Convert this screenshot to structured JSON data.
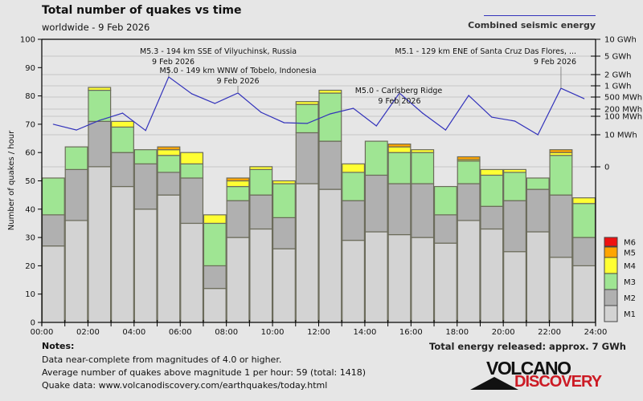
{
  "header": {
    "title": "Total number of quakes vs time",
    "subtitle": "worldwide -  9 Feb 2026",
    "energy_legend": "Combined seismic energy"
  },
  "notes": {
    "title": "Notes:",
    "line1": "Data near-complete from magnitudes of 4.0 or higher.",
    "line2": "Average number of quakes above magnitude 1 per hour: 59 (total: 1418)",
    "line3": "Quake data: www.volcanodiscovery.com/earthquakes/today.html"
  },
  "total_energy": "Total energy released: approx. 7 GWh",
  "logo": {
    "line1": "VOLCANO",
    "line2": "DISCOVERY"
  },
  "colors": {
    "M1": "#d3d3d3",
    "M2": "#b0b0b0",
    "M3": "#9fe593",
    "M4": "#ffff33",
    "M5": "#ffa500",
    "M6": "#ee1111",
    "energy_line": "#3333bb",
    "bar_border": "#6b6b5a"
  },
  "chart_data": {
    "type": "bar",
    "stacked": true,
    "title": "Total number of quakes vs time",
    "ylabel": "Number of quakes / hour",
    "ylim": [
      0,
      100
    ],
    "yticks": [
      0,
      10,
      20,
      30,
      40,
      50,
      60,
      70,
      80,
      90,
      100
    ],
    "xticks": [
      "00:00",
      "02:00",
      "04:00",
      "06:00",
      "08:00",
      "10:00",
      "12:00",
      "14:00",
      "16:00",
      "18:00",
      "20:00",
      "22:00",
      "24:00"
    ],
    "hours": [
      0,
      1,
      2,
      3,
      4,
      5,
      6,
      7,
      8,
      9,
      10,
      11,
      12,
      13,
      14,
      15,
      16,
      17,
      18,
      19,
      20,
      21,
      22,
      23
    ],
    "legend": [
      "M6",
      "M5",
      "M4",
      "M3",
      "M2",
      "M1"
    ],
    "series": [
      {
        "name": "M1",
        "values": [
          27,
          36,
          55,
          48,
          40,
          45,
          35,
          12,
          30,
          33,
          26,
          49,
          47,
          29,
          32,
          31,
          30,
          28,
          36,
          33,
          25,
          32,
          23,
          20
        ]
      },
      {
        "name": "M2",
        "values": [
          11,
          18,
          16,
          12,
          16,
          8,
          16,
          8,
          13,
          12,
          11,
          18,
          17,
          14,
          20,
          18,
          19,
          10,
          13,
          8,
          18,
          15,
          22,
          10
        ]
      },
      {
        "name": "M3",
        "values": [
          13,
          8,
          11,
          9,
          5,
          6,
          5,
          15,
          5,
          9,
          12,
          10,
          17,
          10,
          12,
          11,
          11,
          10,
          8,
          11,
          10,
          4,
          14,
          12
        ]
      },
      {
        "name": "M4",
        "values": [
          0,
          0,
          1,
          2,
          0,
          2,
          4,
          3,
          2,
          1,
          1,
          1,
          1,
          3,
          0,
          2,
          1,
          0,
          0.5,
          2,
          1,
          0,
          1,
          2
        ]
      },
      {
        "name": "M5",
        "values": [
          0,
          0,
          0,
          0,
          0,
          1,
          0,
          0,
          1,
          0,
          0,
          0,
          0,
          0,
          0,
          1,
          0,
          0,
          1,
          0,
          0,
          0,
          1,
          0
        ]
      },
      {
        "name": "M6",
        "values": [
          0,
          0,
          0,
          0,
          0,
          0,
          0,
          0,
          0,
          0,
          0,
          0,
          0,
          0,
          0,
          0,
          0,
          0,
          0,
          0,
          0,
          0,
          0,
          0
        ]
      }
    ],
    "energy": {
      "name": "Combined seismic energy",
      "unit": "MWh",
      "values": [
        37,
        18,
        60,
        136,
        17,
        1730,
        610,
        307,
        640,
        147,
        45,
        41,
        126,
        212,
        30,
        640,
        136,
        18,
        552,
        90,
        55,
        10,
        860,
        443
      ],
      "ticks": [
        {
          "label": "10 GWh",
          "value": 10000
        },
        {
          "label": "5 GWh",
          "value": 5000
        },
        {
          "label": "2 GWh",
          "value": 2000
        },
        {
          "label": "1 GWh",
          "value": 1000
        },
        {
          "label": "500 MWh",
          "value": 500
        },
        {
          "label": "200 MWh",
          "value": 200
        },
        {
          "label": "100 MWh",
          "value": 100
        },
        {
          "label": "10 MWh",
          "value": 10
        },
        {
          "label": "0",
          "value": 0
        }
      ]
    },
    "annotations": [
      {
        "hour": 5,
        "line1": "M5.3 - 194 km SSE of Vilyuchinsk, Russia",
        "line2": "9 Feb 2026",
        "align": "start"
      },
      {
        "hour": 8,
        "line1": "M5.0 - 149 km WNW of Tobelo, Indonesia",
        "line2": "9 Feb 2026",
        "align": "middle"
      },
      {
        "hour": 15,
        "line1": "M5.0 - Carlsberg Ridge",
        "line2": "9 Feb 2026",
        "align": "middle"
      },
      {
        "hour": 22,
        "line1": "M5.1 - 129 km ENE of Santa Cruz Das Flores, ...",
        "line2": "9 Feb 2026",
        "align": "end"
      }
    ]
  }
}
